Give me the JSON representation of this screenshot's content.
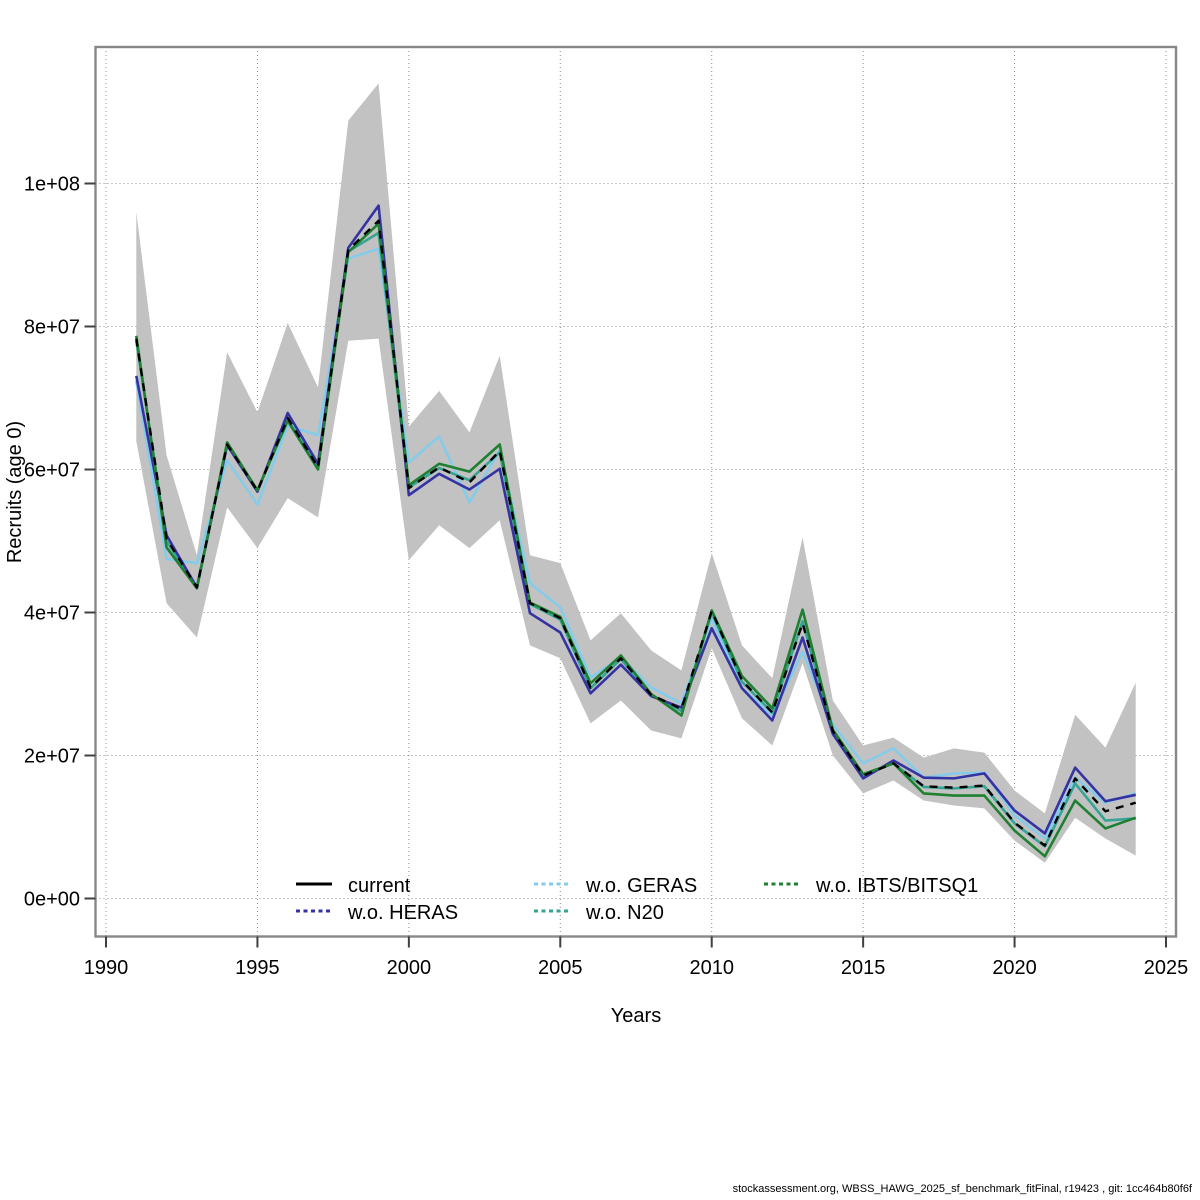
{
  "footer": {
    "text": "stockassessment.org, WBSS_HAWG_2025_sf_benchmark_fitFinal, r19423 , git: 1cc464b80f6f"
  },
  "chart_data": {
    "type": "line",
    "title": "",
    "xlabel": "Years",
    "ylabel": "Recruits (age 0)",
    "xlim": [
      1990,
      2025
    ],
    "ylim_e6": [
      -5.5,
      119
    ],
    "grid": "dotted",
    "legend_position": "bottom-inside",
    "x_ticks": [
      1990,
      1995,
      2000,
      2005,
      2010,
      2015,
      2020,
      2025
    ],
    "y_ticks": [
      {
        "label": "0e+00",
        "value_e6": 0
      },
      {
        "label": "2e+07",
        "value_e6": 20
      },
      {
        "label": "4e+07",
        "value_e6": 40
      },
      {
        "label": "6e+07",
        "value_e6": 60
      },
      {
        "label": "8e+07",
        "value_e6": 80
      },
      {
        "label": "1e+08",
        "value_e6": 100
      }
    ],
    "values_unit": "millions of recruits (multiply by 1e6)",
    "years": [
      1991,
      1992,
      1993,
      1994,
      1995,
      1996,
      1997,
      1998,
      1999,
      2000,
      2001,
      2002,
      2003,
      2004,
      2005,
      2006,
      2007,
      2008,
      2009,
      2010,
      2011,
      2012,
      2013,
      2014,
      2015,
      2016,
      2017,
      2018,
      2019,
      2020,
      2021,
      2022,
      2023,
      2024
    ],
    "band": {
      "name": "confidence-band",
      "color": "#c2c2c2",
      "upper_e6": [
        96.0,
        62.0,
        48.0,
        76.4,
        68.0,
        80.5,
        71.5,
        108.8,
        114.0,
        66.0,
        71.0,
        65.2,
        75.9,
        48.0,
        46.9,
        36.1,
        39.9,
        34.7,
        31.9,
        48.3,
        35.4,
        30.8,
        50.5,
        27.7,
        21.4,
        22.5,
        19.7,
        21.0,
        20.4,
        15.1,
        11.9,
        25.7,
        21.1,
        30.2
      ],
      "lower_e6": [
        64.0,
        41.3,
        36.5,
        54.7,
        49.0,
        56.0,
        53.3,
        78.0,
        78.3,
        47.3,
        52.2,
        49.0,
        52.9,
        35.4,
        33.6,
        24.5,
        27.7,
        23.5,
        22.4,
        35.0,
        25.2,
        21.4,
        32.9,
        20.0,
        14.7,
        16.5,
        13.7,
        13.0,
        12.6,
        8.1,
        5.0,
        11.3,
        8.4,
        6.0
      ]
    },
    "series": [
      {
        "name": "current",
        "color": "#000000",
        "line_style": "dashed",
        "values_e6": [
          78.3,
          50.3,
          43.5,
          63.5,
          57.0,
          67.2,
          60.3,
          90.7,
          94.8,
          57.4,
          60.3,
          58.2,
          62.6,
          41.3,
          39.2,
          29.5,
          33.6,
          28.5,
          26.5,
          40.2,
          30.5,
          26.0,
          38.5,
          23.4,
          17.2,
          18.9,
          15.7,
          15.5,
          15.8,
          10.6,
          7.4,
          16.8,
          12.2,
          13.4
        ]
      },
      {
        "name": "w.o. HERAS",
        "color": "#3533a3",
        "line_style": "solid",
        "values_e6": [
          73.1,
          50.8,
          43.5,
          63.4,
          56.9,
          67.9,
          60.8,
          91.0,
          96.9,
          56.4,
          59.4,
          57.2,
          60.1,
          39.9,
          37.2,
          28.7,
          32.7,
          28.3,
          26.7,
          37.8,
          29.4,
          24.9,
          36.5,
          23.0,
          16.8,
          19.3,
          16.9,
          16.8,
          17.5,
          12.3,
          9.1,
          18.3,
          13.6,
          14.5
        ]
      },
      {
        "name": "w.o. GERAS",
        "color": "#85cbea",
        "line_style": "solid",
        "values_e6": [
          72.4,
          47.5,
          46.9,
          61.3,
          55.1,
          66.1,
          64.8,
          89.5,
          90.9,
          61.0,
          64.6,
          55.4,
          62.7,
          44.1,
          40.7,
          30.9,
          33.7,
          29.5,
          27.3,
          39.2,
          29.4,
          25.6,
          34.5,
          24.3,
          18.9,
          21.0,
          16.9,
          17.5,
          17.6,
          11.6,
          8.4,
          16.9,
          13.4,
          14.7
        ]
      },
      {
        "name": "w.o. N20",
        "color": "#36a495",
        "line_style": "solid",
        "values_e6": [
          78.0,
          50.0,
          43.4,
          63.5,
          57.0,
          67.0,
          60.2,
          90.5,
          93.1,
          57.5,
          60.2,
          58.5,
          62.4,
          41.2,
          39.0,
          29.4,
          33.5,
          28.5,
          26.2,
          40.0,
          30.3,
          26.0,
          38.8,
          23.4,
          17.2,
          18.9,
          15.6,
          15.4,
          15.7,
          10.5,
          7.3,
          16.1,
          10.9,
          11.2
        ]
      },
      {
        "name": "w.o. IBTS/BITSQ1",
        "color": "#1f8032",
        "line_style": "solid",
        "values_e6": [
          78.7,
          49.1,
          43.4,
          63.8,
          57.1,
          66.8,
          60.0,
          90.4,
          94.4,
          57.8,
          60.8,
          59.7,
          63.5,
          41.4,
          39.4,
          30.1,
          34.0,
          28.6,
          25.6,
          40.3,
          31.1,
          26.6,
          40.4,
          23.6,
          17.4,
          18.9,
          14.7,
          14.4,
          14.4,
          9.5,
          5.9,
          13.7,
          9.8,
          11.3
        ]
      }
    ],
    "legend": {
      "rows": 2,
      "columns": 3,
      "entries": [
        {
          "label": "current",
          "key_style": "solid"
        },
        {
          "label": "w.o. HERAS",
          "key_style": "dashed"
        },
        {
          "label": "w.o. GERAS",
          "key_style": "dashed"
        },
        {
          "label": "w.o. N20",
          "key_style": "dashed"
        },
        {
          "label": "w.o. IBTS/BITSQ1",
          "key_style": "dashed"
        }
      ]
    }
  }
}
